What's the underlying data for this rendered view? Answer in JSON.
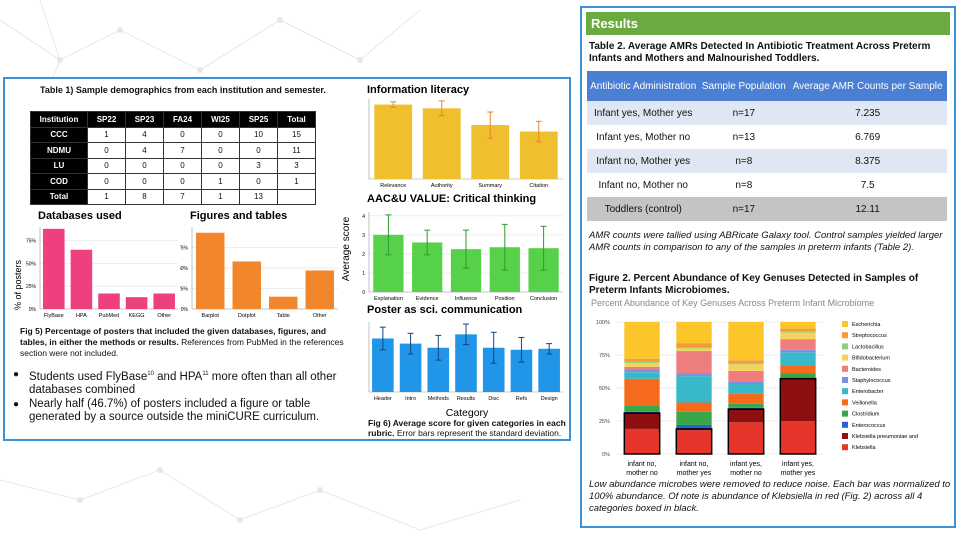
{
  "left": {
    "table1": {
      "title": "Table 1) Sample demographics from each institution and semester.",
      "headers": [
        "Institution",
        "SP22",
        "SP23",
        "FA24",
        "WI25",
        "SP25",
        "Total"
      ],
      "rows": [
        [
          "CCC",
          "1",
          "4",
          "0",
          "0",
          "10",
          "15"
        ],
        [
          "NDMU",
          "0",
          "4",
          "7",
          "0",
          "0",
          "11"
        ],
        [
          "LU",
          "0",
          "0",
          "0",
          "0",
          "3",
          "3"
        ],
        [
          "COD",
          "0",
          "0",
          "0",
          "1",
          "0",
          "1"
        ],
        [
          "Total",
          "1",
          "8",
          "7",
          "1",
          "13",
          ""
        ]
      ]
    },
    "y_axis_label": "% of posters",
    "fig5": {
      "bold": "Fig 5) Percentage of posters that included the given databases, figures, and tables, in either the methods or results.",
      "rest": " References from PubMed in the references section were not included."
    },
    "bullets": [
      {
        "a": "Students used FlyBase",
        "s1": "10",
        "b": " and HPA",
        "s2": "11",
        "c": " more often than all other databases combined"
      },
      {
        "a": "Nearly half (46.7%) of posters included a figure or table generated by a source outside the miniCURE curriculum."
      }
    ],
    "avg_score_label": "Average score",
    "category_label": "Category",
    "fig6": {
      "bold": "Fig 6) Average score for given categories in each rubric.",
      "rest": " Error bars represent the standard deviation."
    }
  },
  "right": {
    "header": "Results",
    "table2": {
      "title": "Table 2. Average AMRs Detected In Antibiotic Treatment Across Preterm Infants and Mothers and Malnourished Toddlers.",
      "headers": [
        "Antibiotic Administration",
        "Sample Population",
        "Average AMR Counts per Sample"
      ],
      "rows": [
        [
          "Infant yes, Mother yes",
          "n=17",
          "7.235"
        ],
        [
          "Infant yes, Mother no",
          "n=13",
          "6.769"
        ],
        [
          "Infant no, Mother yes",
          "n=8",
          "8.375"
        ],
        [
          "Infant no, Mother no",
          "n=8",
          "7.5"
        ],
        [
          "Toddlers (control)",
          "n=17",
          "12.11"
        ]
      ]
    },
    "t2note": "AMR counts were tallied using ABRicate Galaxy tool. Control samples yielded larger AMR counts in comparison to any of the samples in preterm infants (Table 2).",
    "fig2title": "Figure 2. Percent Abundance of Key Genuses Detected in Samples of Preterm Infants Microbiomes.",
    "fig2note": "Low abundance microbes were removed to reduce noise. Each bar was normalized to 100% abundance. Of note is abundance of Klebsiella in red (Fig. 2) across all 4 categories boxed in black."
  },
  "chart_data": [
    {
      "type": "bar",
      "title": "Databases used",
      "categories": [
        "FlyBase",
        "HPA",
        "PubMed",
        "KEGG",
        "Other"
      ],
      "values": [
        88,
        65,
        17,
        13,
        17
      ],
      "ylim": [
        0,
        90
      ],
      "yticks": [
        "0%",
        "25%",
        "50%",
        "75%"
      ],
      "color": "#ee3f7f"
    },
    {
      "type": "bar",
      "title": "Figures and tables",
      "categories": [
        "Barplot",
        "Dotplot",
        "Table",
        "Other"
      ],
      "values": [
        93,
        58,
        15,
        47
      ],
      "ylim": [
        0,
        100
      ],
      "yticks": [
        "0%",
        "25%",
        "50%",
        "75%"
      ],
      "color": "#f2862c"
    },
    {
      "type": "bar",
      "title": "Information literacy",
      "categories": [
        "Relevance",
        "Authority",
        "Summary",
        "Citation"
      ],
      "values": [
        4.0,
        3.8,
        2.9,
        2.55
      ],
      "errors": [
        0.15,
        0.4,
        0.7,
        0.55
      ],
      "ylim": [
        0,
        4.3
      ],
      "color": "#f0bf2e",
      "err_color": "#e8862c"
    },
    {
      "type": "bar",
      "title": "AAC&U VALUE: Critical thinking",
      "categories": [
        "Explanation",
        "Evidence",
        "Influence",
        "Position",
        "Conclusion"
      ],
      "values": [
        3.0,
        2.6,
        2.25,
        2.35,
        2.3
      ],
      "errors": [
        1.05,
        0.65,
        1.0,
        1.2,
        1.15
      ],
      "ylim": [
        0,
        4.2
      ],
      "yticks": [
        "0",
        "1",
        "2",
        "3",
        "4"
      ],
      "color": "#57d04a",
      "err_color": "#2f9a2f"
    },
    {
      "type": "bar",
      "title": "Poster as sci. communication",
      "categories": [
        "Header",
        "Intro",
        "Methods",
        "Results",
        "Disc",
        "Refs",
        "Design"
      ],
      "values": [
        2.6,
        2.35,
        2.15,
        2.8,
        2.15,
        2.05,
        2.1
      ],
      "errors": [
        0.55,
        0.5,
        0.6,
        0.5,
        0.75,
        0.6,
        0.25
      ],
      "ylim": [
        0,
        3.4
      ],
      "color": "#2196e8",
      "err_color": "#114488"
    },
    {
      "type": "bar",
      "subtype": "stacked",
      "title": "Percent Abundance of Key Genuses Across Preterm Infant Microbiome",
      "categories": [
        "infant no, mother no",
        "infant no, mother yes",
        "infant yes, mother no",
        "infant yes, mother yes"
      ],
      "yticks": [
        "0%",
        "25%",
        "50%",
        "75%",
        "100%"
      ],
      "series": [
        {
          "name": "Klebsiella",
          "color": "#e8352c",
          "values": [
            19,
            18,
            24,
            25
          ]
        },
        {
          "name": "Klebsiella pneumoniae and",
          "color": "#8e0f10",
          "values": [
            12,
            1,
            10,
            32
          ]
        },
        {
          "name": "Enterococcus",
          "color": "#2d5fcf",
          "values": [
            1,
            3,
            1,
            1
          ]
        },
        {
          "name": "Clostridium",
          "color": "#3aa64a",
          "values": [
            5,
            10,
            3,
            3
          ]
        },
        {
          "name": "Veillonella",
          "color": "#f56a1c",
          "values": [
            20,
            7,
            8,
            6
          ]
        },
        {
          "name": "Enterobacter",
          "color": "#39b8c9",
          "values": [
            5,
            20,
            7,
            10
          ]
        },
        {
          "name": "Staphylococcus",
          "color": "#7f8fe0",
          "values": [
            2,
            2,
            2,
            2
          ]
        },
        {
          "name": "Bacteroides",
          "color": "#ee7d7d",
          "values": [
            2,
            17,
            8,
            8
          ]
        },
        {
          "name": "Bifidobacterium",
          "color": "#f5d35a",
          "values": [
            3,
            2,
            5,
            5
          ]
        },
        {
          "name": "Lactobacillus",
          "color": "#8dd07e",
          "values": [
            1,
            1,
            1,
            1
          ]
        },
        {
          "name": "Streptococcus",
          "color": "#f59b35",
          "values": [
            2,
            3,
            2,
            2
          ]
        },
        {
          "name": "Escherichia",
          "color": "#fcc52a",
          "values": [
            28,
            16,
            29,
            5
          ]
        }
      ]
    }
  ]
}
